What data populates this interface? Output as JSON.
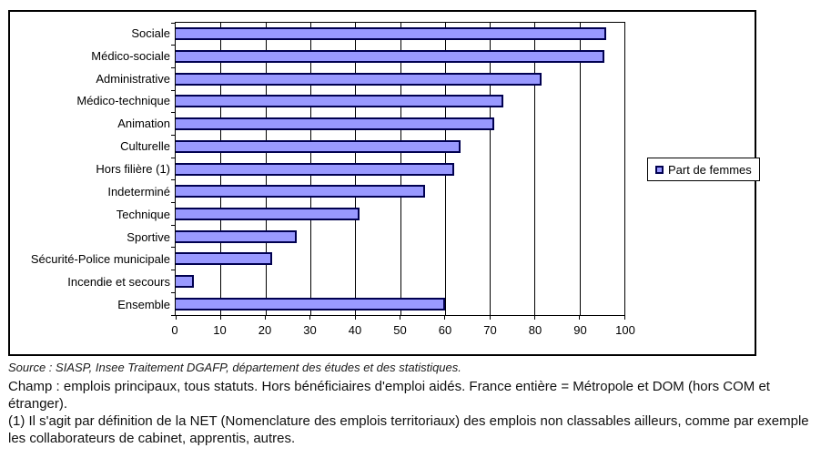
{
  "chart_data": {
    "type": "bar",
    "orientation": "horizontal",
    "title": "",
    "legend": "Part de femmes",
    "legend_position": "right",
    "grid": "vertical-gridlines-on",
    "xlim": [
      0,
      100
    ],
    "x_ticks": [
      0,
      10,
      20,
      30,
      40,
      50,
      60,
      70,
      80,
      90,
      100
    ],
    "categories": [
      "Sociale",
      "Médico-sociale",
      "Administrative",
      "Médico-technique",
      "Animation",
      "Culturelle",
      "Hors filière (1)",
      "Indeterminé",
      "Technique",
      "Sportive",
      "Sécurité-Police municipale",
      "Incendie et secours",
      "Ensemble"
    ],
    "values": [
      96,
      95.5,
      81.5,
      73,
      71,
      63.5,
      62,
      55.5,
      41,
      27,
      21.5,
      4,
      60
    ],
    "bar_fill": "#9999FF",
    "bar_border": "#000050"
  },
  "notes": {
    "source": "Source : SIASP, Insee Traitement DGAFP, département des études et des statistiques.",
    "champ": "Champ : emplois principaux, tous statuts. Hors bénéficiaires d'emploi aidés. France entière = Métropole et DOM (hors COM et étranger).",
    "footnote": "(1) Il s'agit par définition de la NET (Nomenclature des emplois territoriaux) des emplois non classables ailleurs, comme par exemple les collaborateurs de cabinet, apprentis, autres."
  }
}
